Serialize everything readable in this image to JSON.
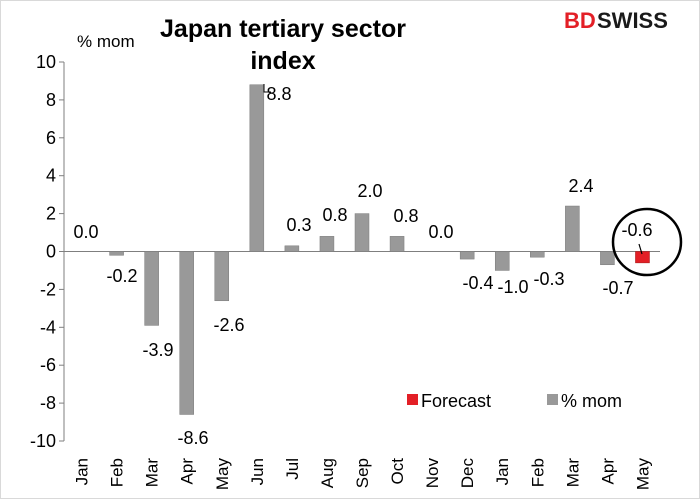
{
  "brand": {
    "logo_left": "BD",
    "logo_right": "SWISS",
    "accent": "#e31f26"
  },
  "chart_data": {
    "type": "bar",
    "title_lines": [
      "Japan tertiary sector",
      "index"
    ],
    "unit_label": "% mom",
    "ylim": [
      -10,
      10
    ],
    "yticks": [
      10,
      8,
      6,
      4,
      2,
      0,
      -2,
      -4,
      -6,
      -8,
      -10
    ],
    "categories": [
      "Jan",
      "Feb",
      "Mar",
      "Apr",
      "May",
      "Jun",
      "Jul",
      "Aug",
      "Sep",
      "Oct",
      "Nov",
      "Dec",
      "Jan",
      "Feb",
      "Mar",
      "Apr",
      "May"
    ],
    "series": [
      {
        "name": "% mom",
        "color": "#999999",
        "values": [
          0.0,
          -0.2,
          -3.9,
          -8.6,
          -2.6,
          8.8,
          0.3,
          0.8,
          2.0,
          0.8,
          0.0,
          -0.4,
          -1.0,
          -0.3,
          2.4,
          -0.7,
          null
        ]
      },
      {
        "name": "Forecast",
        "color": "#e31f26",
        "values": [
          null,
          null,
          null,
          null,
          null,
          null,
          null,
          null,
          null,
          null,
          null,
          null,
          null,
          null,
          null,
          null,
          -0.6
        ]
      }
    ],
    "data_labels": [
      "0.0",
      "-0.2",
      "-3.9",
      "-8.6",
      "-2.6",
      "8.8",
      "0.3",
      "0.8",
      "2.0",
      "0.8",
      "0.0",
      "-0.4",
      "-1.0",
      "-0.3",
      "2.4",
      "-0.7",
      "-0.6"
    ],
    "legend": [
      {
        "name": "Forecast",
        "color": "#e31f26"
      },
      {
        "name": "% mom",
        "color": "#999999"
      }
    ],
    "annotation": "circle around May forecast"
  }
}
